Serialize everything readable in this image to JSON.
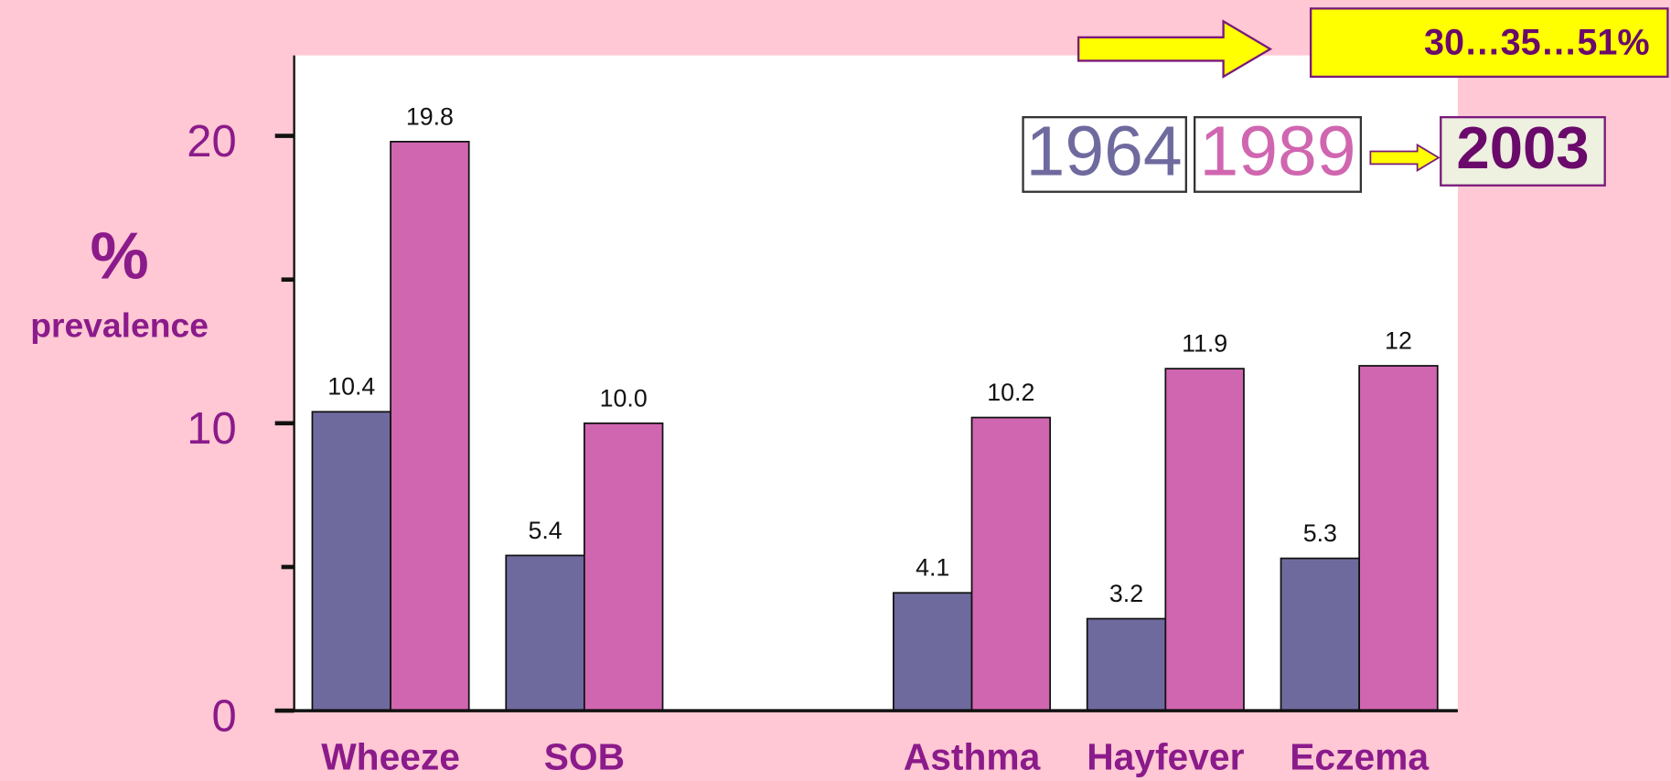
{
  "chart_data": {
    "type": "bar",
    "ylabel": "%",
    "ylabel_sub": "prevalence",
    "categories": [
      "Wheeze",
      "SOB",
      null,
      "Asthma",
      "Hayfever",
      "Eczema"
    ],
    "series": [
      {
        "name": "1964",
        "color": "#6f6a9e",
        "values": [
          10.4,
          5.4,
          null,
          4.1,
          3.2,
          5.3
        ],
        "value_labels": [
          "10.4",
          "5.4",
          null,
          "4.1",
          "3.2",
          "5.3"
        ]
      },
      {
        "name": "1989",
        "color": "#d066b0",
        "values": [
          19.8,
          10,
          null,
          10.2,
          11.9,
          12
        ],
        "value_labels": [
          "19.8",
          "10.0",
          null,
          "10.2",
          "11.9",
          "12"
        ]
      }
    ],
    "ylim": [
      0,
      22.8
    ],
    "yticks": [
      0,
      10,
      20
    ],
    "minor_yticks": [
      5,
      15
    ],
    "annotations": {
      "next_year": "2003",
      "range": "30…35…51%"
    }
  }
}
